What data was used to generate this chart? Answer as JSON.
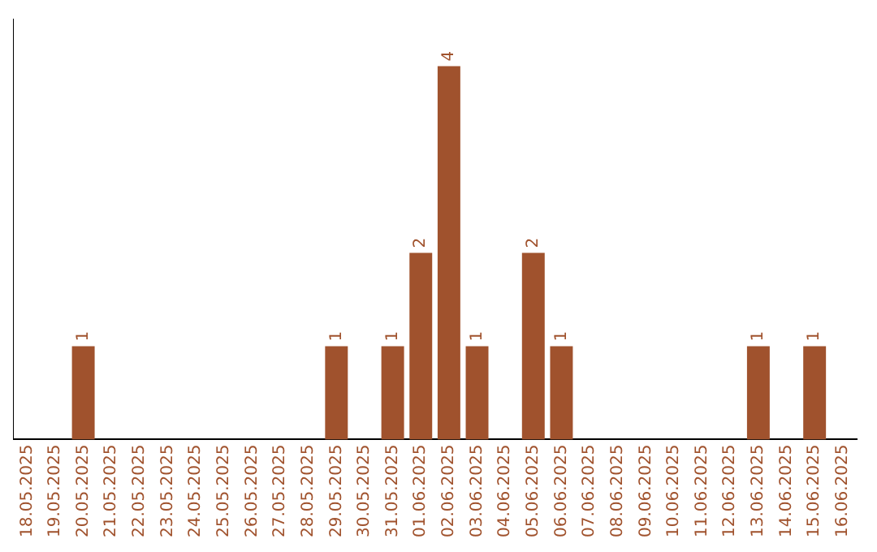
{
  "chart_data": {
    "type": "bar",
    "categories": [
      "18.05.2025",
      "19.05.2025",
      "20.05.2025",
      "21.05.2025",
      "22.05.2025",
      "23.05.2025",
      "24.05.2025",
      "25.05.2025",
      "26.05.2025",
      "27.05.2025",
      "28.05.2025",
      "29.05.2025",
      "30.05.2025",
      "31.05.2025",
      "01.06.2025",
      "02.06.2025",
      "03.06.2025",
      "04.06.2025",
      "05.06.2025",
      "06.06.2025",
      "07.06.2025",
      "08.06.2025",
      "09.06.2025",
      "10.06.2025",
      "11.06.2025",
      "12.06.2025",
      "13.06.2025",
      "14.06.2025",
      "15.06.2025",
      "16.06.2025"
    ],
    "values": [
      0,
      0,
      1,
      0,
      0,
      0,
      0,
      0,
      0,
      0,
      0,
      1,
      0,
      1,
      2,
      4,
      1,
      0,
      2,
      1,
      0,
      0,
      0,
      0,
      0,
      0,
      1,
      0,
      1,
      0
    ],
    "value_labels": [
      null,
      null,
      "1",
      null,
      null,
      null,
      null,
      null,
      null,
      null,
      null,
      "1",
      null,
      "1",
      "2",
      "4",
      "1",
      null,
      "2",
      "1",
      null,
      null,
      null,
      null,
      null,
      null,
      "1",
      null,
      "1",
      null
    ],
    "color": "#a0522d",
    "grid": false,
    "legend": false,
    "tick_labels": "x"
  }
}
